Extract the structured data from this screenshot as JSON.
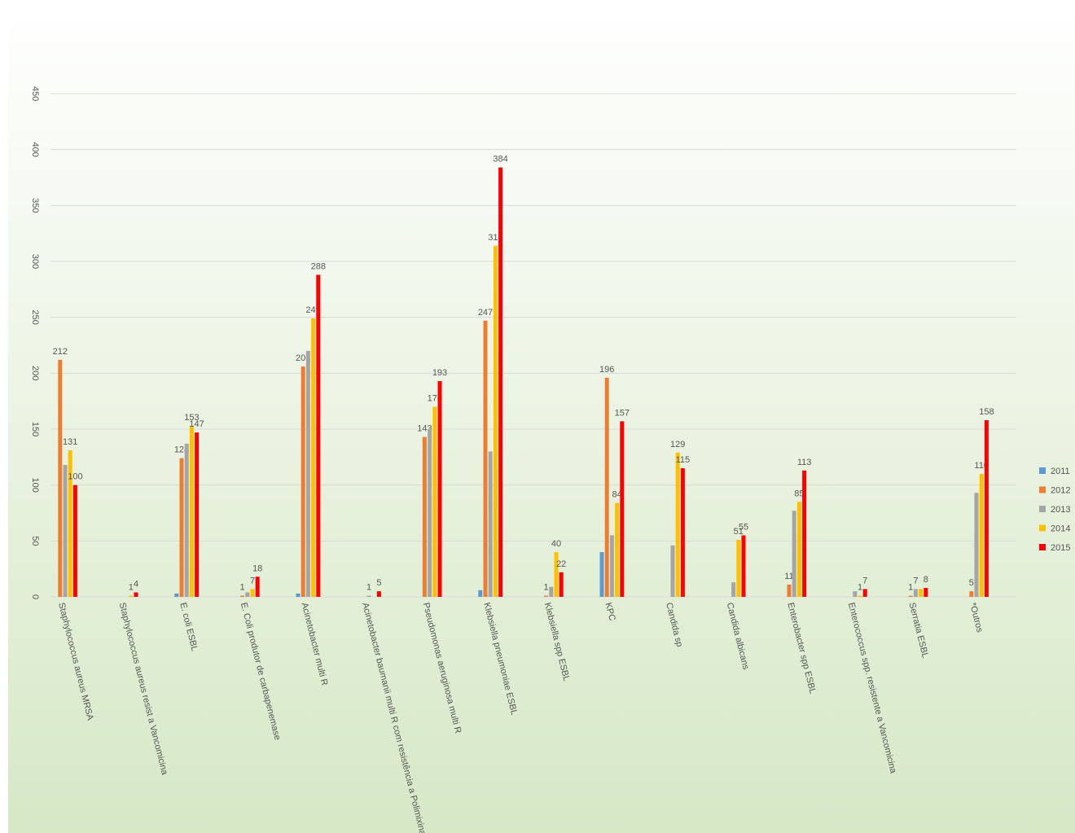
{
  "chart_data": {
    "type": "bar",
    "categories": [
      "Staphylococcus aureus MRSA",
      "Staphylococcus aureus resist a  Vancomicina",
      "E. coli ESBL",
      "E. Coli produtor de carbapenemase",
      "Acinetobacter multi R",
      "Acinetobacter baumanii multi R com resistência a Polimixina",
      "Pseudomonas aeruginosa multi R",
      "Klebsiella pneumoniae ESBL",
      "Klebsiella spp ESBL",
      "KPC",
      "Candida sp",
      "Candida albicans",
      "Enterobacter spp ESBL",
      "Enterococcus spp. resistente a Vancomicina",
      "Serratia ESBL",
      "*Outros"
    ],
    "series": [
      {
        "name": "2011",
        "color": "#5b9bd5",
        "values": [
          null,
          null,
          3,
          null,
          3,
          null,
          null,
          6,
          null,
          40,
          null,
          null,
          null,
          null,
          null,
          null
        ],
        "value_labels": [
          null,
          null,
          null,
          null,
          null,
          null,
          null,
          null,
          null,
          null,
          null,
          null,
          null,
          null,
          null,
          null
        ]
      },
      {
        "name": "2012",
        "color": "#ed7d31",
        "values": [
          212,
          null,
          124,
          1,
          206,
          null,
          143,
          247,
          1,
          196,
          null,
          null,
          11,
          null,
          1,
          5
        ],
        "value_labels": [
          "212",
          null,
          "124",
          "1",
          "206",
          null,
          "143",
          "247",
          "1",
          "196",
          null,
          null,
          "11",
          null,
          "1",
          "5"
        ]
      },
      {
        "name": "2013",
        "color": "#a5a5a5",
        "values": [
          118,
          null,
          137,
          4,
          220,
          1,
          150,
          130,
          9,
          55,
          46,
          13,
          77,
          5,
          7,
          93
        ],
        "value_labels": [
          null,
          null,
          null,
          null,
          null,
          "1",
          null,
          null,
          null,
          null,
          null,
          null,
          null,
          null,
          "7",
          null
        ]
      },
      {
        "name": "2014",
        "color": "#ffc000",
        "values": [
          131,
          1,
          153,
          7,
          249,
          null,
          170,
          314,
          40,
          84,
          129,
          51,
          85,
          1,
          7,
          110
        ],
        "value_labels": [
          "131",
          "1",
          "153",
          "7",
          "249",
          null,
          "170",
          "314",
          "40",
          "84",
          "129",
          "51",
          "85",
          "1",
          null,
          "110"
        ]
      },
      {
        "name": "2015",
        "color": "#ff0000",
        "values": [
          100,
          4,
          147,
          18,
          288,
          5,
          193,
          384,
          22,
          157,
          115,
          55,
          113,
          7,
          8,
          158
        ],
        "value_labels": [
          "100",
          "4",
          "147",
          "18",
          "288",
          "5",
          "193",
          "384",
          "22",
          "157",
          "115",
          "55",
          "113",
          "7",
          "8",
          "158"
        ]
      }
    ],
    "ylim": [
      0,
      450
    ],
    "yticks": [
      0,
      50,
      100,
      150,
      200,
      250,
      300,
      350,
      400,
      450
    ],
    "grid": true,
    "legend": "right"
  }
}
